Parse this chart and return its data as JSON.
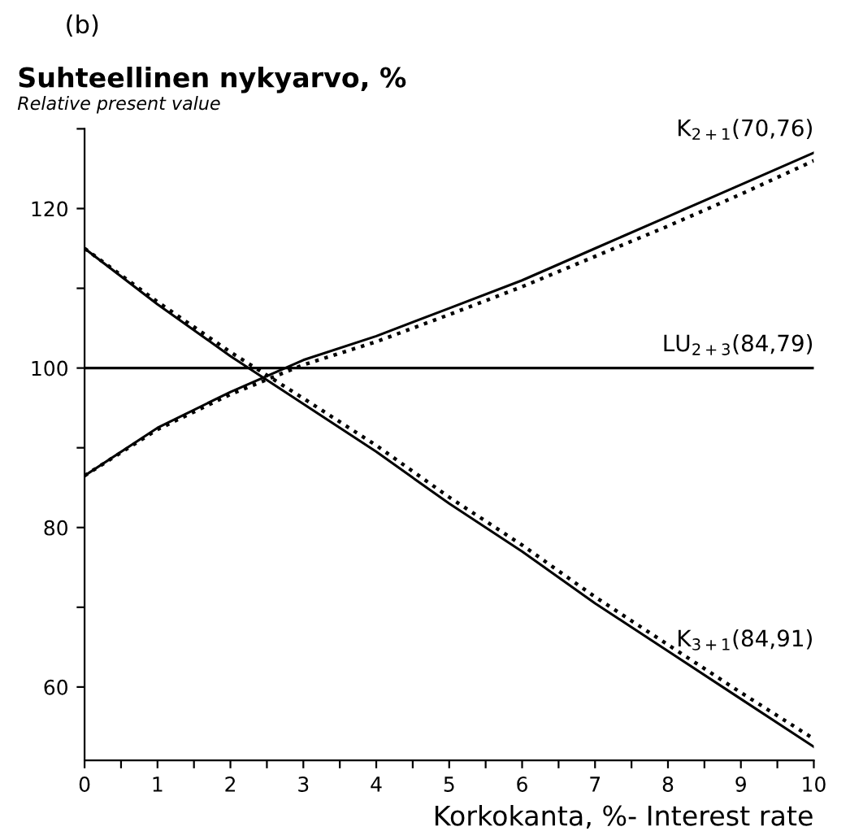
{
  "chart_data": {
    "type": "line",
    "title": "Suhteellinen nykyarvo, %",
    "subtitle": "Relative present value",
    "xlabel": "Korkokanta, %- Interest rate",
    "annotations": [
      "(b)"
    ],
    "x": [
      0,
      1,
      2,
      3,
      4,
      5,
      6,
      7,
      8,
      9,
      10
    ],
    "series": [
      {
        "name": "K$_{2+1}$(70,76)",
        "color": "#000000",
        "line_style": "solid",
        "values": [
          86.5,
          92.5,
          97,
          101,
          104,
          107.5,
          111,
          115,
          119,
          123,
          127
        ]
      },
      {
        "color": "#000000",
        "line_style": "dotted",
        "values": [
          86.5,
          92.3,
          96.7,
          100.4,
          103.3,
          106.7,
          110.2,
          114,
          117.8,
          121.8,
          126
        ]
      },
      {
        "name": "K$_{3+1}$(84,91)",
        "color": "#000000",
        "line_style": "solid",
        "values": [
          115,
          108,
          101.5,
          95.5,
          89.5,
          83,
          77,
          70.5,
          64.5,
          58.5,
          52.5
        ]
      },
      {
        "color": "#000000",
        "line_style": "dotted",
        "values": [
          115,
          108.3,
          102,
          96.2,
          90.3,
          83.8,
          77.8,
          71.3,
          65.3,
          59.3,
          53.5
        ]
      },
      {
        "name": "LU$_{2+3}$(84,79)",
        "color": "#000000",
        "line_style": "solid",
        "values": [
          100,
          100,
          100,
          100,
          100,
          100,
          100,
          100,
          100,
          100,
          100
        ]
      }
    ],
    "xlim": [
      0,
      10
    ],
    "ylim": [
      50.8,
      130
    ],
    "xticks": [
      0,
      {
        "value": 0.5,
        "label": null
      },
      1,
      {
        "value": 1.5,
        "label": null
      },
      2,
      {
        "value": 2.5,
        "label": null
      },
      3,
      {
        "value": 3.5,
        "label": null
      },
      4,
      {
        "value": 4.5,
        "label": null
      },
      5,
      {
        "value": 5.5,
        "label": null
      },
      6,
      {
        "value": 6.5,
        "label": null
      },
      7,
      {
        "value": 7.5,
        "label": null
      },
      8,
      {
        "value": 8.5,
        "label": null
      },
      9,
      {
        "value": 9.5,
        "label": null
      },
      10
    ],
    "yticks": [
      60,
      {
        "value": 70,
        "label": null
      },
      80,
      {
        "value": 90,
        "label": null
      },
      100,
      {
        "value": 110,
        "label": null
      },
      120,
      {
        "value": 130,
        "label": null
      }
    ],
    "grid": false,
    "legend": false,
    "marker": "none"
  }
}
